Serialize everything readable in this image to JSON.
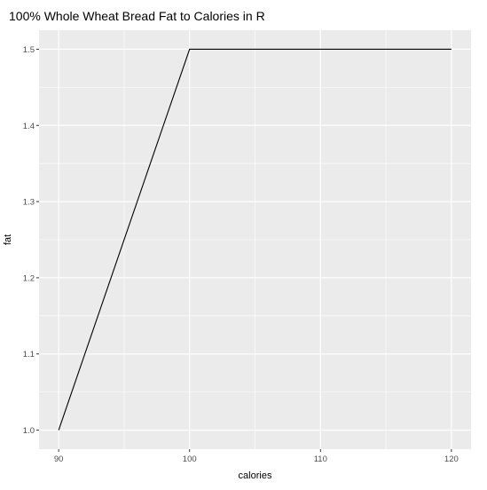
{
  "chart_data": {
    "type": "line",
    "title": "100% Whole Wheat Bread Fat to Calories in R",
    "xlabel": "calories",
    "ylabel": "fat",
    "xlim": [
      88.5,
      121.5
    ],
    "ylim": [
      0.975,
      1.525
    ],
    "x_ticks": [
      90,
      100,
      110,
      120
    ],
    "x_tick_labels": [
      "90",
      "100",
      "110",
      "120"
    ],
    "y_ticks": [
      1.0,
      1.1,
      1.2,
      1.3,
      1.4,
      1.5
    ],
    "y_tick_labels": [
      "1.0",
      "1.1",
      "1.2",
      "1.3",
      "1.4",
      "1.5"
    ],
    "grid": true,
    "series": [
      {
        "x": [
          90,
          100,
          120
        ],
        "y": [
          1.0,
          1.5,
          1.5
        ]
      }
    ],
    "colors": {
      "panel": "#ebebeb",
      "grid": "#ffffff",
      "line": "#000000"
    }
  }
}
